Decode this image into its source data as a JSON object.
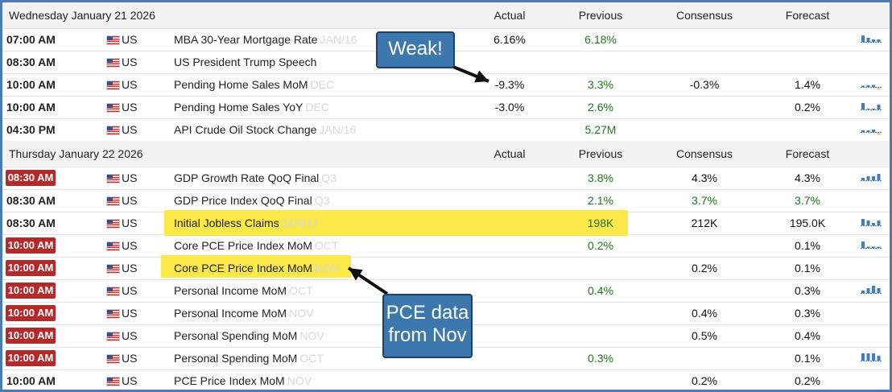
{
  "days": [
    {
      "date": "Wednesday January 21 2026",
      "headers": {
        "actual": "Actual",
        "previous": "Previous",
        "consensus": "Consensus",
        "forecast": "Forecast"
      },
      "events": [
        {
          "time": "07:00 AM",
          "badge": false,
          "country": "US",
          "name": "MBA 30-Year Mortgage Rate",
          "ref": "JAN/16",
          "actual": "6.16%",
          "previous": "6.18%",
          "consensus": "",
          "forecast": "",
          "chart": [
            0.8,
            0.5,
            0.3,
            0.3
          ]
        },
        {
          "time": "08:30 AM",
          "badge": false,
          "country": "US",
          "name": "US President Trump Speech",
          "ref": "",
          "actual": "",
          "previous": "",
          "consensus": "",
          "forecast": "",
          "chart": null
        },
        {
          "time": "10:00 AM",
          "badge": false,
          "country": "US",
          "name": "Pending Home Sales MoM",
          "ref": "DEC",
          "actual": "-9.3%",
          "previous": "3.3%",
          "consensus": "-0.3%",
          "forecast": "1.4%",
          "chart": [
            0.15,
            0.2,
            0.25,
            -0.8
          ]
        },
        {
          "time": "10:00 AM",
          "badge": false,
          "country": "US",
          "name": "Pending Home Sales YoY",
          "ref": "DEC",
          "actual": "-3.0%",
          "previous": "2.6%",
          "consensus": "",
          "forecast": "0.2%",
          "chart": [
            0.8,
            0.1,
            0.1,
            0.6
          ]
        },
        {
          "time": "04:30 PM",
          "badge": false,
          "country": "US",
          "name": "API Crude Oil Stock Change",
          "ref": "JAN/16",
          "actual": "",
          "previous": "5.27M",
          "consensus": "",
          "forecast": "",
          "chart": [
            0.2,
            0.2,
            0.3,
            -0.5
          ]
        }
      ]
    },
    {
      "date": "Thursday January 22 2026",
      "headers": {
        "actual": "Actual",
        "previous": "Previous",
        "consensus": "Consensus",
        "forecast": "Forecast"
      },
      "events": [
        {
          "time": "08:30 AM",
          "badge": true,
          "country": "US",
          "name": "GDP Growth Rate QoQ Final",
          "ref": "Q3",
          "actual": "",
          "previous": "3.8%",
          "consensus": "4.3%",
          "forecast": "4.3%",
          "chart": [
            0.3,
            0.5,
            0.5,
            0.8
          ]
        },
        {
          "time": "08:30 AM",
          "badge": false,
          "country": "US",
          "name": "GDP Price Index QoQ Final",
          "ref": "Q3",
          "actual": "",
          "previous": "2.1%",
          "consensus": "3.7%",
          "forecast": "3.7%",
          "chart": null
        },
        {
          "time": "08:30 AM",
          "badge": false,
          "country": "US",
          "name": "Initial Jobless Claims",
          "ref": "JAN/17",
          "actual": "",
          "previous": "198K",
          "consensus": "212K",
          "forecast": "195.0K",
          "chart": [
            0.8,
            0.6,
            0.3,
            0.6
          ],
          "highlight": "wide"
        },
        {
          "time": "10:00 AM",
          "badge": true,
          "country": "US",
          "name": "Core PCE Price Index MoM",
          "ref": "OCT",
          "actual": "",
          "previous": "0.2%",
          "consensus": "",
          "forecast": "0.1%",
          "chart": [
            0.8,
            0.15,
            0.15,
            0.15
          ]
        },
        {
          "time": "10:00 AM",
          "badge": true,
          "country": "US",
          "name": "Core PCE Price Index MoM",
          "ref": "NOV",
          "actual": "",
          "previous": "",
          "consensus": "0.2%",
          "forecast": "0.1%",
          "chart": null,
          "highlight": "narrow"
        },
        {
          "time": "10:00 AM",
          "badge": true,
          "country": "US",
          "name": "Personal Income MoM",
          "ref": "OCT",
          "actual": "",
          "previous": "0.4%",
          "consensus": "",
          "forecast": "0.3%",
          "chart": [
            0.3,
            0.6,
            0.9,
            0.6
          ]
        },
        {
          "time": "10:00 AM",
          "badge": true,
          "country": "US",
          "name": "Personal Income MoM",
          "ref": "NOV",
          "actual": "",
          "previous": "",
          "consensus": "0.4%",
          "forecast": "0.3%",
          "chart": null
        },
        {
          "time": "10:00 AM",
          "badge": true,
          "country": "US",
          "name": "Personal Spending MoM",
          "ref": "NOV",
          "actual": "",
          "previous": "",
          "consensus": "0.5%",
          "forecast": "0.4%",
          "chart": null
        },
        {
          "time": "10:00 AM",
          "badge": true,
          "country": "US",
          "name": "Personal Spending MoM",
          "ref": "OCT",
          "actual": "",
          "previous": "0.3%",
          "consensus": "",
          "forecast": "0.1%",
          "chart": [
            0.9,
            0.9,
            0.9,
            0.6
          ]
        },
        {
          "time": "10:00 AM",
          "badge": false,
          "country": "US",
          "name": "PCE Price Index MoM",
          "ref": "NOV",
          "actual": "",
          "previous": "",
          "consensus": "0.2%",
          "forecast": "0.2%",
          "chart": null
        }
      ]
    }
  ],
  "callouts": {
    "weak": "Weak!",
    "pce_line1": "PCE data",
    "pce_line2": "from Nov"
  },
  "colors": {
    "frame": "#4b7bb1",
    "badge": "#b42a2a",
    "positive": "#1c7a1c",
    "highlight": "#fbe94a",
    "callout": "#3c77ad",
    "spark": "#3f7fc0",
    "spark_neg": "#f5c8a0"
  }
}
